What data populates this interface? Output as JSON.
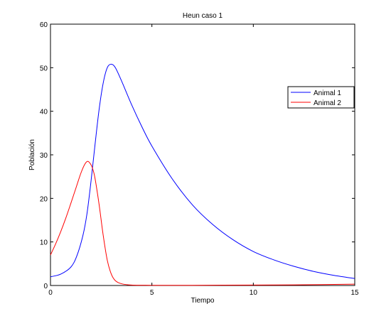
{
  "chart_data": {
    "type": "line",
    "title": "Heun caso 1",
    "xlabel": "Tiempo",
    "ylabel": "Población",
    "xlim": [
      0,
      15
    ],
    "ylim": [
      0,
      60
    ],
    "xticks": [
      0,
      5,
      10,
      15
    ],
    "yticks": [
      0,
      10,
      20,
      30,
      40,
      50,
      60
    ],
    "xtick_labels": [
      "0",
      "5",
      "10",
      "15"
    ],
    "ytick_labels": [
      "0",
      "10",
      "20",
      "30",
      "40",
      "50",
      "60"
    ],
    "grid": false,
    "legend_position": "top-right",
    "series": [
      {
        "name": "Animal 1",
        "color": "#0000ff",
        "x": [
          0,
          0.5,
          1.0,
          1.3,
          1.6,
          1.8,
          2.0,
          2.2,
          2.4,
          2.6,
          2.8,
          3.0,
          3.2,
          3.5,
          4.0,
          4.5,
          5.0,
          6.0,
          7.0,
          8.0,
          9.0,
          10.0,
          11.0,
          12.0,
          13.0,
          14.0,
          15.0
        ],
        "values": [
          2.0,
          2.6,
          4.2,
          6.8,
          11.5,
          16.5,
          24.0,
          32.5,
          40.5,
          46.5,
          50.0,
          50.8,
          50.0,
          47.0,
          41.5,
          36.5,
          32.0,
          24.5,
          18.5,
          14.0,
          10.5,
          7.8,
          5.9,
          4.4,
          3.2,
          2.3,
          1.6
        ]
      },
      {
        "name": "Animal 2",
        "color": "#ff0000",
        "x": [
          0,
          0.25,
          0.5,
          0.75,
          1.0,
          1.25,
          1.5,
          1.7,
          1.85,
          2.0,
          2.1,
          2.2,
          2.4,
          2.6,
          2.8,
          3.0,
          3.2,
          3.5,
          4.0,
          5.0,
          7.0,
          10.0,
          12.0,
          15.0
        ],
        "values": [
          7.0,
          9.5,
          12.3,
          15.4,
          18.8,
          22.3,
          25.8,
          27.9,
          28.5,
          27.7,
          26.5,
          24.5,
          18.5,
          11.5,
          5.8,
          2.6,
          1.1,
          0.4,
          0.1,
          0.05,
          0.05,
          0.1,
          0.15,
          0.3
        ]
      }
    ]
  }
}
